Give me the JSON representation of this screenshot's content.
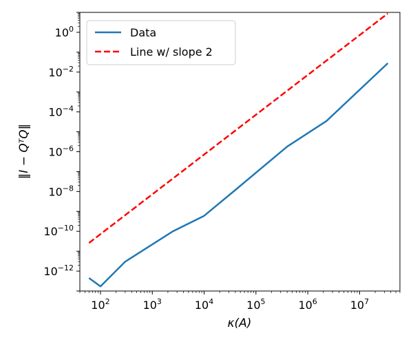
{
  "chart_data": {
    "type": "line",
    "xscale": "log",
    "yscale": "log",
    "xlabel": "κ(A)",
    "ylabel": "‖I − QᵀQ‖",
    "xlim": [
      40,
      60000000
    ],
    "ylim": [
      1e-13,
      10.0
    ],
    "x_ticks": [
      {
        "value": 100,
        "mant": "10",
        "exp": "2"
      },
      {
        "value": 1000,
        "mant": "10",
        "exp": "3"
      },
      {
        "value": 10000,
        "mant": "10",
        "exp": "4"
      },
      {
        "value": 100000,
        "mant": "10",
        "exp": "5"
      },
      {
        "value": 1000000,
        "mant": "10",
        "exp": "6"
      },
      {
        "value": 10000000,
        "mant": "10",
        "exp": "7"
      }
    ],
    "y_ticks": [
      {
        "value": 1.0,
        "mant": "10",
        "exp": "0"
      },
      {
        "value": 0.01,
        "mant": "10",
        "exp": "−2"
      },
      {
        "value": 0.0001,
        "mant": "10",
        "exp": "−4"
      },
      {
        "value": 1e-06,
        "mant": "10",
        "exp": "−6"
      },
      {
        "value": 1e-08,
        "mant": "10",
        "exp": "−8"
      },
      {
        "value": 1e-10,
        "mant": "10",
        "exp": "−10"
      },
      {
        "value": 1e-12,
        "mant": "10",
        "exp": "−12"
      }
    ],
    "grid": false,
    "legend_position": "top-left",
    "series": [
      {
        "name": "Data",
        "color": "#1f77b4",
        "style": "solid",
        "x": [
          60,
          100,
          300,
          2500,
          10000,
          40000,
          400000,
          2300000,
          35000000
        ],
        "y": [
          4.5e-13,
          1.7e-13,
          3e-12,
          1e-10,
          6e-10,
          1.2e-08,
          1.8e-06,
          3.5e-05,
          0.028
        ]
      },
      {
        "name": "Line w/ slope 2",
        "color": "#ff0000",
        "style": "dashed",
        "x": [
          60,
          35000000
        ],
        "y": [
          2.6e-11,
          8.8
        ]
      }
    ]
  }
}
